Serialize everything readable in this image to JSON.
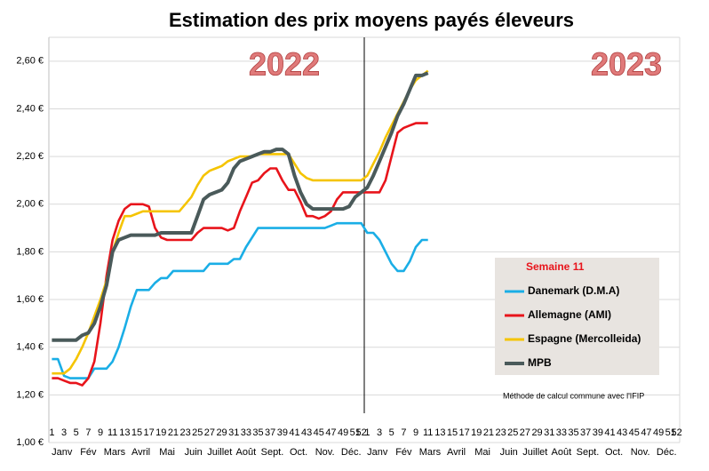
{
  "chart_data": {
    "type": "line",
    "title": "Estimation des prix moyens payés éleveurs",
    "annotations": [
      "2022",
      "2023"
    ],
    "legend_title": "Semaine 11",
    "note": "Méthode de calcul commune avec l'IFIP",
    "categories": [
      "1",
      null,
      "3",
      null,
      "5",
      null,
      "7",
      null,
      "9",
      null,
      "11",
      null,
      "13",
      null,
      "15",
      null,
      "17",
      null,
      "19",
      null,
      "21",
      null,
      "23",
      null,
      "25",
      null,
      "27",
      null,
      "29",
      null,
      "31",
      null,
      "33",
      null,
      "35",
      null,
      "37",
      null,
      "39",
      null,
      "41",
      null,
      "43",
      null,
      "45",
      null,
      "47",
      null,
      "49",
      null,
      "51",
      "52",
      "1",
      null,
      "3",
      null,
      "5",
      null,
      "7",
      null,
      "9",
      null,
      "11",
      null,
      "13",
      null,
      "15",
      null,
      "17",
      null,
      "19",
      null,
      "21",
      null,
      "23",
      null,
      "25",
      null,
      "27",
      null,
      "29",
      null,
      "31",
      null,
      "33",
      null,
      "35",
      null,
      "37",
      null,
      "39",
      null,
      "41",
      null,
      "43",
      null,
      "45",
      null,
      "47",
      null,
      "49",
      null,
      "51",
      "52"
    ],
    "months": [
      "Janv",
      "Fév",
      "Mars",
      "Avril",
      "Mai",
      "Juin",
      "Juillet",
      "Août",
      "Sept.",
      "Oct.",
      "Nov.",
      "Déc.",
      "Janv",
      "Fév",
      "Mars",
      "Avril",
      "Mai",
      "Juin",
      "Juillet",
      "Août",
      "Sept.",
      "Oct.",
      "Nov.",
      "Déc."
    ],
    "ylim": [
      1.0,
      2.7
    ],
    "yticks": [
      {
        "value": 1.0,
        "label": "1,00 €"
      },
      {
        "value": 1.2,
        "label": "1,20 €"
      },
      {
        "value": 1.4,
        "label": "1,40 €"
      },
      {
        "value": 1.6,
        "label": "1,60 €"
      },
      {
        "value": 1.8,
        "label": "1,80 €"
      },
      {
        "value": 2.0,
        "label": "2,00 €"
      },
      {
        "value": 2.2,
        "label": "2,20 €"
      },
      {
        "value": 2.4,
        "label": "2,40 €"
      },
      {
        "value": 2.6,
        "label": "2,60 €"
      }
    ],
    "grid": true,
    "series": [
      {
        "name": "Danemark (D.M.A)",
        "color": "#1aaee6",
        "values": [
          1.35,
          1.35,
          1.28,
          1.27,
          1.27,
          1.27,
          1.27,
          1.31,
          1.31,
          1.31,
          1.34,
          1.4,
          1.48,
          1.57,
          1.64,
          1.64,
          1.64,
          1.67,
          1.69,
          1.69,
          1.72,
          1.72,
          1.72,
          1.72,
          1.72,
          1.72,
          1.75,
          1.75,
          1.75,
          1.75,
          1.77,
          1.77,
          1.82,
          1.86,
          1.9,
          1.9,
          1.9,
          1.9,
          1.9,
          1.9,
          1.9,
          1.9,
          1.9,
          1.9,
          1.9,
          1.9,
          1.91,
          1.92,
          1.92,
          1.92,
          1.92,
          1.92,
          1.88,
          1.88,
          1.85,
          1.8,
          1.75,
          1.72,
          1.72,
          1.76,
          1.82,
          1.85,
          1.85,
          null,
          null,
          null,
          null,
          null,
          null,
          null,
          null,
          null,
          null,
          null,
          null,
          null,
          null,
          null,
          null,
          null,
          null,
          null,
          null,
          null,
          null,
          null,
          null,
          null,
          null,
          null,
          null,
          null,
          null,
          null,
          null,
          null,
          null,
          null,
          null,
          null,
          null,
          null,
          null,
          null
        ]
      },
      {
        "name": "Allemagne (AMI)",
        "color": "#e8141b",
        "values": [
          1.27,
          1.27,
          1.26,
          1.25,
          1.25,
          1.24,
          1.27,
          1.34,
          1.5,
          1.7,
          1.85,
          1.93,
          1.98,
          2.0,
          2.0,
          2.0,
          1.99,
          1.9,
          1.86,
          1.85,
          1.85,
          1.85,
          1.85,
          1.85,
          1.88,
          1.9,
          1.9,
          1.9,
          1.9,
          1.89,
          1.9,
          1.97,
          2.03,
          2.09,
          2.1,
          2.13,
          2.15,
          2.15,
          2.1,
          2.06,
          2.06,
          2.01,
          1.95,
          1.95,
          1.94,
          1.95,
          1.97,
          2.02,
          2.05,
          2.05,
          2.05,
          2.05,
          2.05,
          2.05,
          2.05,
          2.1,
          2.2,
          2.3,
          2.32,
          2.33,
          2.34,
          2.34,
          2.34,
          null,
          null,
          null,
          null,
          null,
          null,
          null,
          null,
          null,
          null,
          null,
          null,
          null,
          null,
          null,
          null,
          null,
          null,
          null,
          null,
          null,
          null,
          null,
          null,
          null,
          null,
          null,
          null,
          null,
          null,
          null,
          null,
          null,
          null,
          null,
          null,
          null,
          null,
          null,
          null,
          null
        ]
      },
      {
        "name": "Espagne (Mercolleida)",
        "color": "#f5c400",
        "values": [
          1.29,
          1.29,
          1.29,
          1.31,
          1.35,
          1.4,
          1.46,
          1.53,
          1.6,
          1.68,
          1.8,
          1.88,
          1.95,
          1.95,
          1.96,
          1.97,
          1.97,
          1.97,
          1.97,
          1.97,
          1.97,
          1.97,
          2.0,
          2.03,
          2.08,
          2.12,
          2.14,
          2.15,
          2.16,
          2.18,
          2.19,
          2.2,
          2.2,
          2.2,
          2.21,
          2.21,
          2.21,
          2.21,
          2.21,
          2.21,
          2.17,
          2.13,
          2.11,
          2.1,
          2.1,
          2.1,
          2.1,
          2.1,
          2.1,
          2.1,
          2.1,
          2.1,
          2.12,
          2.17,
          2.22,
          2.28,
          2.33,
          2.38,
          2.43,
          2.48,
          2.52,
          2.54,
          2.56,
          null,
          null,
          null,
          null,
          null,
          null,
          null,
          null,
          null,
          null,
          null,
          null,
          null,
          null,
          null,
          null,
          null,
          null,
          null,
          null,
          null,
          null,
          null,
          null,
          null,
          null,
          null,
          null,
          null,
          null,
          null,
          null,
          null,
          null,
          null,
          null,
          null,
          null,
          null,
          null,
          null
        ]
      },
      {
        "name": "MPB",
        "color": "#4a5a5a",
        "values": [
          1.43,
          1.43,
          1.43,
          1.43,
          1.43,
          1.45,
          1.46,
          1.5,
          1.57,
          1.66,
          1.8,
          1.85,
          1.86,
          1.87,
          1.87,
          1.87,
          1.87,
          1.87,
          1.88,
          1.88,
          1.88,
          1.88,
          1.88,
          1.88,
          1.95,
          2.02,
          2.04,
          2.05,
          2.06,
          2.09,
          2.15,
          2.18,
          2.19,
          2.2,
          2.21,
          2.22,
          2.22,
          2.23,
          2.23,
          2.21,
          2.12,
          2.05,
          2.0,
          1.98,
          1.98,
          1.98,
          1.98,
          1.98,
          1.98,
          1.99,
          2.03,
          2.05,
          2.07,
          2.12,
          2.18,
          2.24,
          2.3,
          2.37,
          2.42,
          2.48,
          2.54,
          2.54,
          2.55,
          null,
          null,
          null,
          null,
          null,
          null,
          null,
          null,
          null,
          null,
          null,
          null,
          null,
          null,
          null,
          null,
          null,
          null,
          null,
          null,
          null,
          null,
          null,
          null,
          null,
          null,
          null,
          null,
          null,
          null,
          null,
          null,
          null,
          null,
          null,
          null,
          null,
          null,
          null,
          null,
          null
        ]
      }
    ]
  }
}
